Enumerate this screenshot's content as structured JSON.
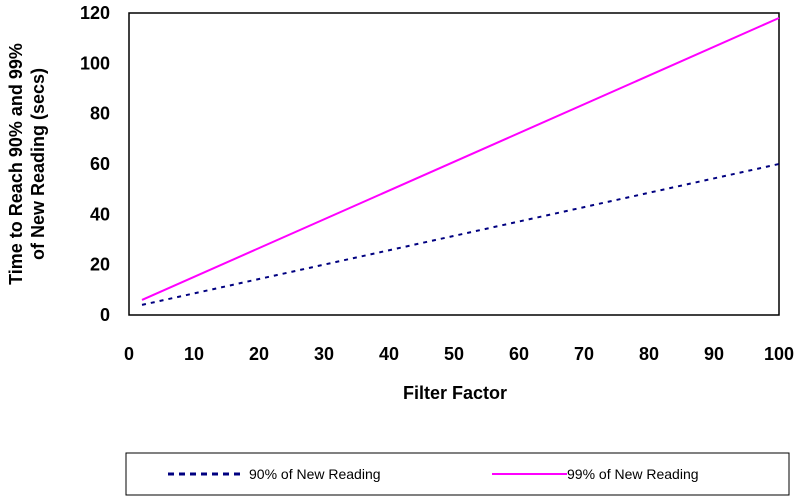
{
  "chart_data": {
    "type": "line",
    "title": "",
    "xlabel": "Filter Factor",
    "ylabel_lines": [
      "Time to Reach 90% and 99%",
      "of New Reading (secs)"
    ],
    "xlim": [
      0,
      100
    ],
    "ylim": [
      0,
      120
    ],
    "x_ticks": [
      0,
      10,
      20,
      30,
      40,
      50,
      60,
      70,
      80,
      90,
      100
    ],
    "y_ticks": [
      0,
      20,
      40,
      60,
      80,
      100,
      120
    ],
    "grid": false,
    "legend_position": "bottom",
    "series": [
      {
        "name": "90% of New Reading",
        "style": "dotted",
        "color": "#000080",
        "x": [
          2,
          100
        ],
        "y": [
          4,
          60
        ]
      },
      {
        "name": "99% of New Reading",
        "style": "solid",
        "color": "#ff00ff",
        "x": [
          2,
          100
        ],
        "y": [
          6,
          118
        ]
      }
    ]
  }
}
